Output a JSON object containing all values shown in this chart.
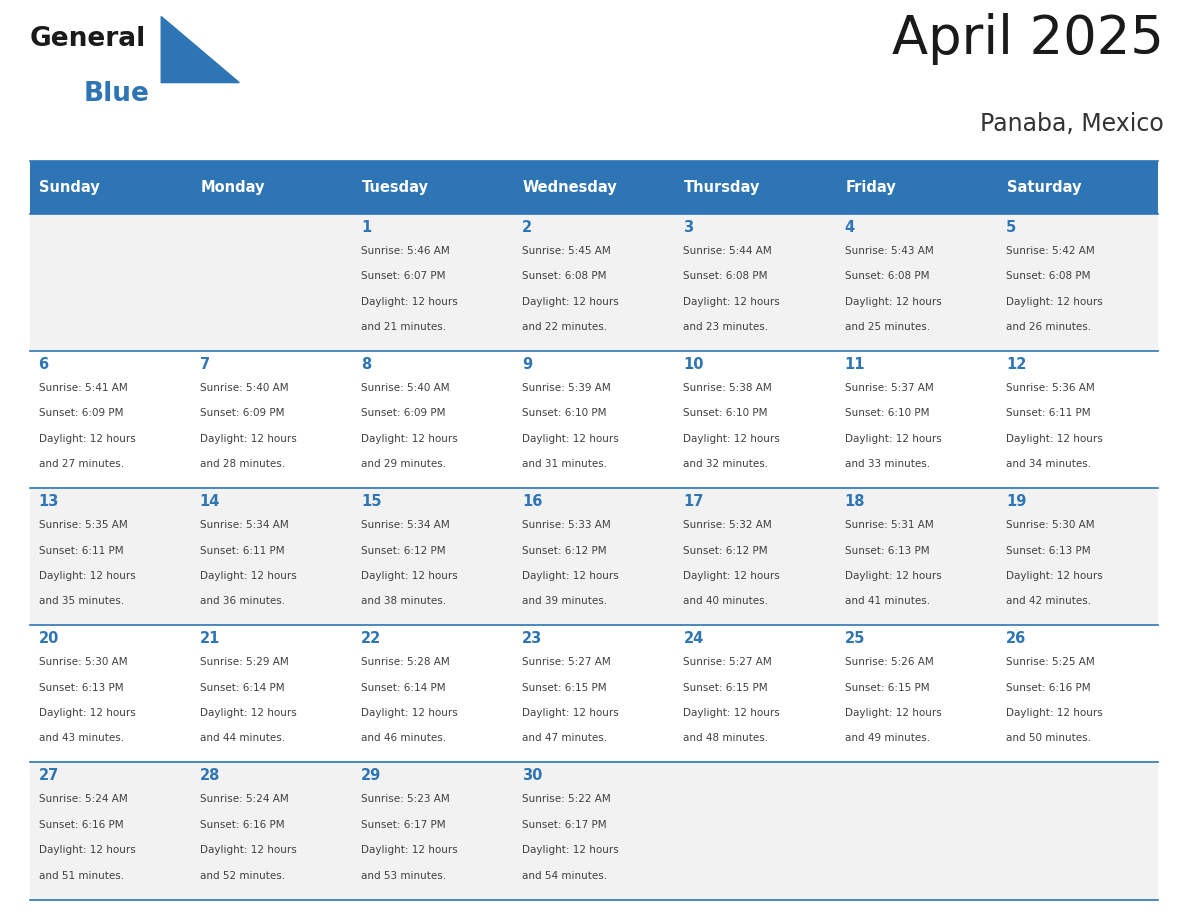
{
  "title": "April 2025",
  "subtitle": "Panaba, Mexico",
  "days_of_week": [
    "Sunday",
    "Monday",
    "Tuesday",
    "Wednesday",
    "Thursday",
    "Friday",
    "Saturday"
  ],
  "header_bg": "#2E75B6",
  "header_text_color": "#FFFFFF",
  "cell_bg_even": "#F2F2F2",
  "cell_bg_white": "#FFFFFF",
  "cell_border_color": "#2E75B6",
  "day_num_color": "#2E75B6",
  "cell_text_color": "#404040",
  "title_color": "#1a1a1a",
  "subtitle_color": "#333333",
  "logo_general_color": "#1a1a1a",
  "logo_blue_color": "#2E75B6",
  "logo_triangle_color": "#2E75B6",
  "calendar_data": [
    [
      null,
      null,
      {
        "day": 1,
        "sunrise": "5:46 AM",
        "sunset": "6:07 PM",
        "daylight": "12 hours\nand 21 minutes."
      },
      {
        "day": 2,
        "sunrise": "5:45 AM",
        "sunset": "6:08 PM",
        "daylight": "12 hours\nand 22 minutes."
      },
      {
        "day": 3,
        "sunrise": "5:44 AM",
        "sunset": "6:08 PM",
        "daylight": "12 hours\nand 23 minutes."
      },
      {
        "day": 4,
        "sunrise": "5:43 AM",
        "sunset": "6:08 PM",
        "daylight": "12 hours\nand 25 minutes."
      },
      {
        "day": 5,
        "sunrise": "5:42 AM",
        "sunset": "6:08 PM",
        "daylight": "12 hours\nand 26 minutes."
      }
    ],
    [
      {
        "day": 6,
        "sunrise": "5:41 AM",
        "sunset": "6:09 PM",
        "daylight": "12 hours\nand 27 minutes."
      },
      {
        "day": 7,
        "sunrise": "5:40 AM",
        "sunset": "6:09 PM",
        "daylight": "12 hours\nand 28 minutes."
      },
      {
        "day": 8,
        "sunrise": "5:40 AM",
        "sunset": "6:09 PM",
        "daylight": "12 hours\nand 29 minutes."
      },
      {
        "day": 9,
        "sunrise": "5:39 AM",
        "sunset": "6:10 PM",
        "daylight": "12 hours\nand 31 minutes."
      },
      {
        "day": 10,
        "sunrise": "5:38 AM",
        "sunset": "6:10 PM",
        "daylight": "12 hours\nand 32 minutes."
      },
      {
        "day": 11,
        "sunrise": "5:37 AM",
        "sunset": "6:10 PM",
        "daylight": "12 hours\nand 33 minutes."
      },
      {
        "day": 12,
        "sunrise": "5:36 AM",
        "sunset": "6:11 PM",
        "daylight": "12 hours\nand 34 minutes."
      }
    ],
    [
      {
        "day": 13,
        "sunrise": "5:35 AM",
        "sunset": "6:11 PM",
        "daylight": "12 hours\nand 35 minutes."
      },
      {
        "day": 14,
        "sunrise": "5:34 AM",
        "sunset": "6:11 PM",
        "daylight": "12 hours\nand 36 minutes."
      },
      {
        "day": 15,
        "sunrise": "5:34 AM",
        "sunset": "6:12 PM",
        "daylight": "12 hours\nand 38 minutes."
      },
      {
        "day": 16,
        "sunrise": "5:33 AM",
        "sunset": "6:12 PM",
        "daylight": "12 hours\nand 39 minutes."
      },
      {
        "day": 17,
        "sunrise": "5:32 AM",
        "sunset": "6:12 PM",
        "daylight": "12 hours\nand 40 minutes."
      },
      {
        "day": 18,
        "sunrise": "5:31 AM",
        "sunset": "6:13 PM",
        "daylight": "12 hours\nand 41 minutes."
      },
      {
        "day": 19,
        "sunrise": "5:30 AM",
        "sunset": "6:13 PM",
        "daylight": "12 hours\nand 42 minutes."
      }
    ],
    [
      {
        "day": 20,
        "sunrise": "5:30 AM",
        "sunset": "6:13 PM",
        "daylight": "12 hours\nand 43 minutes."
      },
      {
        "day": 21,
        "sunrise": "5:29 AM",
        "sunset": "6:14 PM",
        "daylight": "12 hours\nand 44 minutes."
      },
      {
        "day": 22,
        "sunrise": "5:28 AM",
        "sunset": "6:14 PM",
        "daylight": "12 hours\nand 46 minutes."
      },
      {
        "day": 23,
        "sunrise": "5:27 AM",
        "sunset": "6:15 PM",
        "daylight": "12 hours\nand 47 minutes."
      },
      {
        "day": 24,
        "sunrise": "5:27 AM",
        "sunset": "6:15 PM",
        "daylight": "12 hours\nand 48 minutes."
      },
      {
        "day": 25,
        "sunrise": "5:26 AM",
        "sunset": "6:15 PM",
        "daylight": "12 hours\nand 49 minutes."
      },
      {
        "day": 26,
        "sunrise": "5:25 AM",
        "sunset": "6:16 PM",
        "daylight": "12 hours\nand 50 minutes."
      }
    ],
    [
      {
        "day": 27,
        "sunrise": "5:24 AM",
        "sunset": "6:16 PM",
        "daylight": "12 hours\nand 51 minutes."
      },
      {
        "day": 28,
        "sunrise": "5:24 AM",
        "sunset": "6:16 PM",
        "daylight": "12 hours\nand 52 minutes."
      },
      {
        "day": 29,
        "sunrise": "5:23 AM",
        "sunset": "6:17 PM",
        "daylight": "12 hours\nand 53 minutes."
      },
      {
        "day": 30,
        "sunrise": "5:22 AM",
        "sunset": "6:17 PM",
        "daylight": "12 hours\nand 54 minutes."
      },
      null,
      null,
      null
    ]
  ]
}
